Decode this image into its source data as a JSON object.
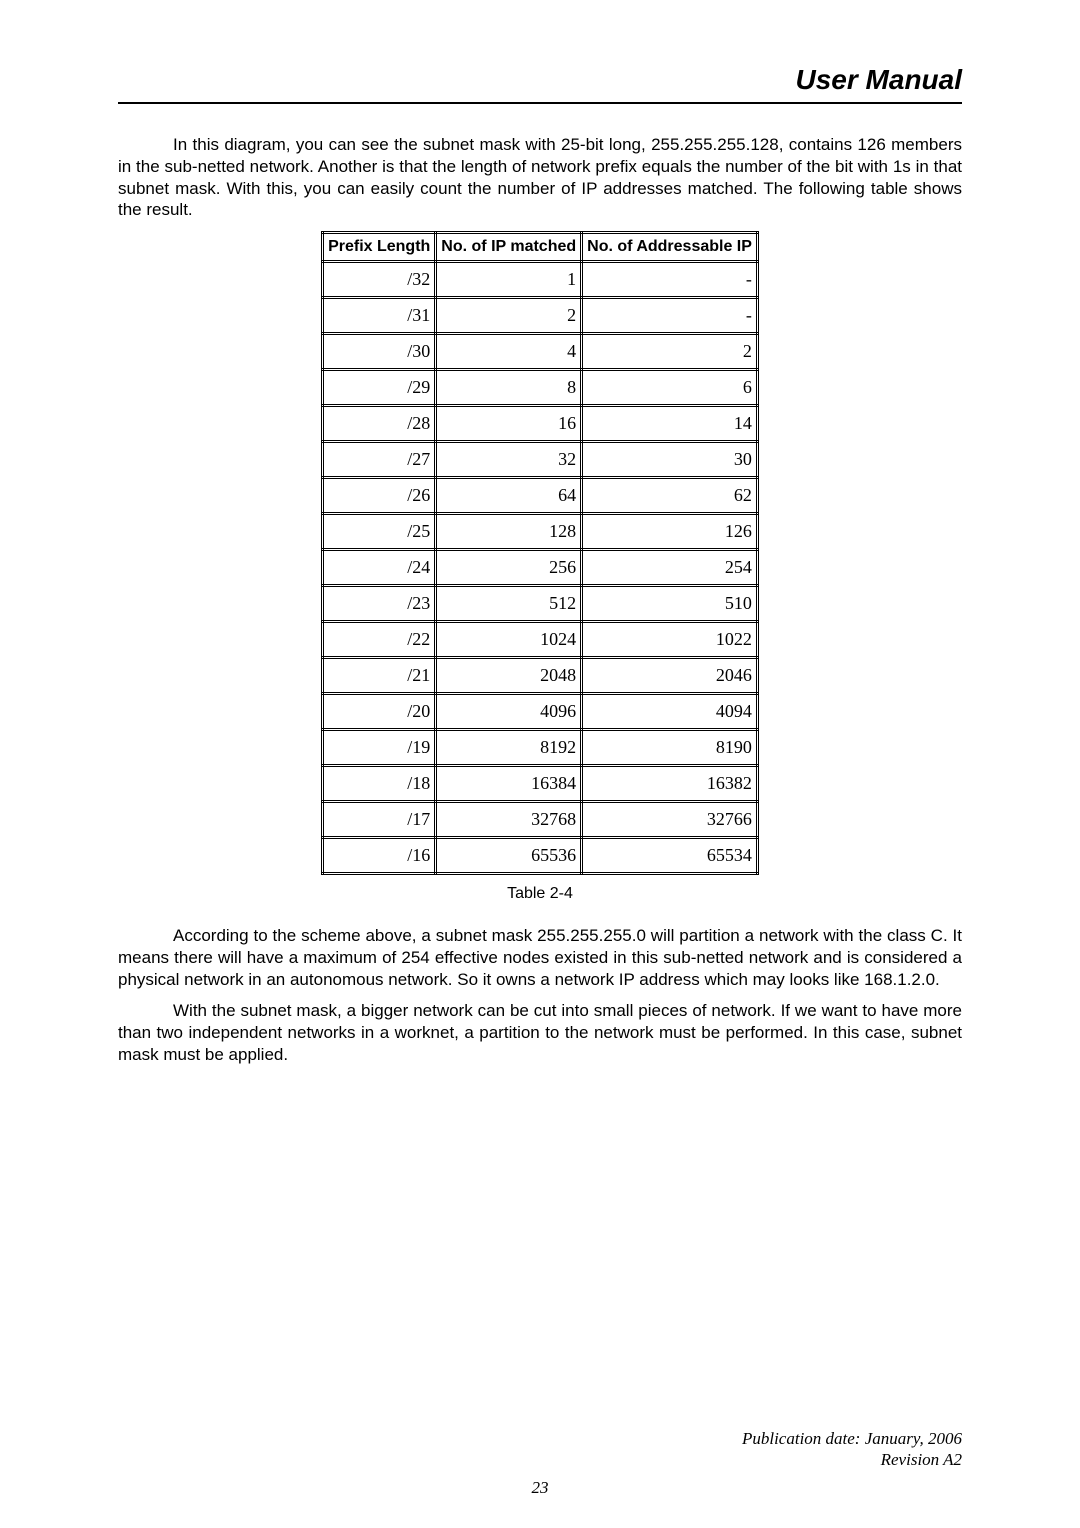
{
  "header": {
    "title": "User Manual"
  },
  "para1": "In this diagram, you can see the subnet mask with 25-bit long, 255.255.255.128, contains 126 members in the sub-netted network. Another is that the length of network prefix equals the number of the bit with 1s in that subnet mask. With this, you can easily count the number of IP addresses matched. The following table shows the result.",
  "table": {
    "headers": [
      "Prefix Length",
      "No. of IP matched",
      "No. of Addressable IP"
    ],
    "rows": [
      [
        "/32",
        "1",
        "-"
      ],
      [
        "/31",
        "2",
        "-"
      ],
      [
        "/30",
        "4",
        "2"
      ],
      [
        "/29",
        "8",
        "6"
      ],
      [
        "/28",
        "16",
        "14"
      ],
      [
        "/27",
        "32",
        "30"
      ],
      [
        "/26",
        "64",
        "62"
      ],
      [
        "/25",
        "128",
        "126"
      ],
      [
        "/24",
        "256",
        "254"
      ],
      [
        "/23",
        "512",
        "510"
      ],
      [
        "/22",
        "1024",
        "1022"
      ],
      [
        "/21",
        "2048",
        "2046"
      ],
      [
        "/20",
        "4096",
        "4094"
      ],
      [
        "/19",
        "8192",
        "8190"
      ],
      [
        "/18",
        "16384",
        "16382"
      ],
      [
        "/17",
        "32768",
        "32766"
      ],
      [
        "/16",
        "65536",
        "65534"
      ]
    ]
  },
  "caption": "Table 2-4",
  "para2": "According to the scheme above, a subnet mask 255.255.255.0 will partition a network with the class C. It means there will have a maximum of 254 effective nodes existed in this sub-netted network and is considered a physical network in an autonomous network. So it owns a network IP address which may looks like 168.1.2.0.",
  "para3": "With the subnet mask, a bigger network can be cut into small pieces of network. If we want to have more than two independent networks in a worknet, a partition to the network must be performed. In this case, subnet mask must be applied.",
  "footer": {
    "line1": "Publication date: January, 2006",
    "line2": "Revision A2"
  },
  "page_number": "23"
}
